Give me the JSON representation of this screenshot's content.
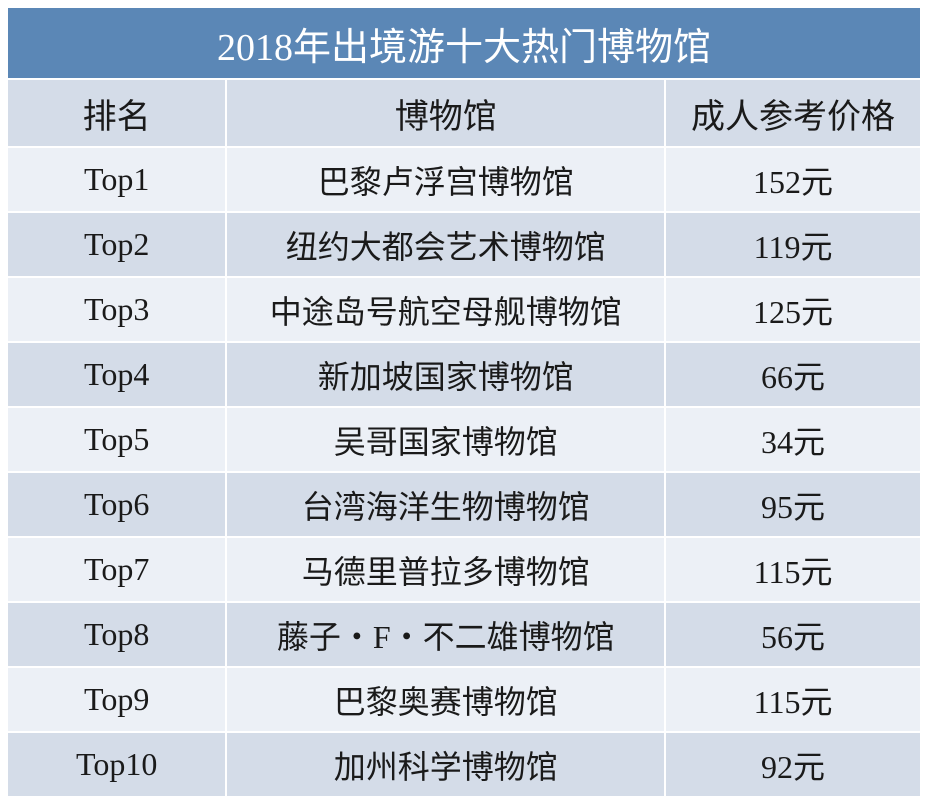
{
  "table": {
    "title": "2018年出境游十大热门博物馆",
    "columns": {
      "rank": "排名",
      "name": "博物馆",
      "price": "成人参考价格"
    },
    "rows": [
      {
        "rank": "Top1",
        "name": "巴黎卢浮宫博物馆",
        "price": "152元"
      },
      {
        "rank": "Top2",
        "name": "纽约大都会艺术博物馆",
        "price": "119元"
      },
      {
        "rank": "Top3",
        "name": "中途岛号航空母舰博物馆",
        "price": "125元"
      },
      {
        "rank": "Top4",
        "name": "新加坡国家博物馆",
        "price": "66元"
      },
      {
        "rank": "Top5",
        "name": "吴哥国家博物馆",
        "price": "34元"
      },
      {
        "rank": "Top6",
        "name": "台湾海洋生物博物馆",
        "price": "95元"
      },
      {
        "rank": "Top7",
        "name": "马德里普拉多博物馆",
        "price": "115元"
      },
      {
        "rank": "Top8",
        "name": "藤子・F・不二雄博物馆",
        "price": "56元"
      },
      {
        "rank": "Top9",
        "name": "巴黎奥赛博物馆",
        "price": "115元"
      },
      {
        "rank": "Top10",
        "name": "加州科学博物馆",
        "price": "92元"
      }
    ],
    "colors": {
      "title_bg": "#5b87b6",
      "title_text": "#ffffff",
      "header_bg": "#d4dce8",
      "odd_row_bg": "#ecf0f6",
      "even_row_bg": "#d4dce8",
      "border": "#ffffff",
      "text": "#1a1a1a"
    },
    "font_sizes": {
      "title": 38,
      "header": 34,
      "body": 32
    }
  }
}
